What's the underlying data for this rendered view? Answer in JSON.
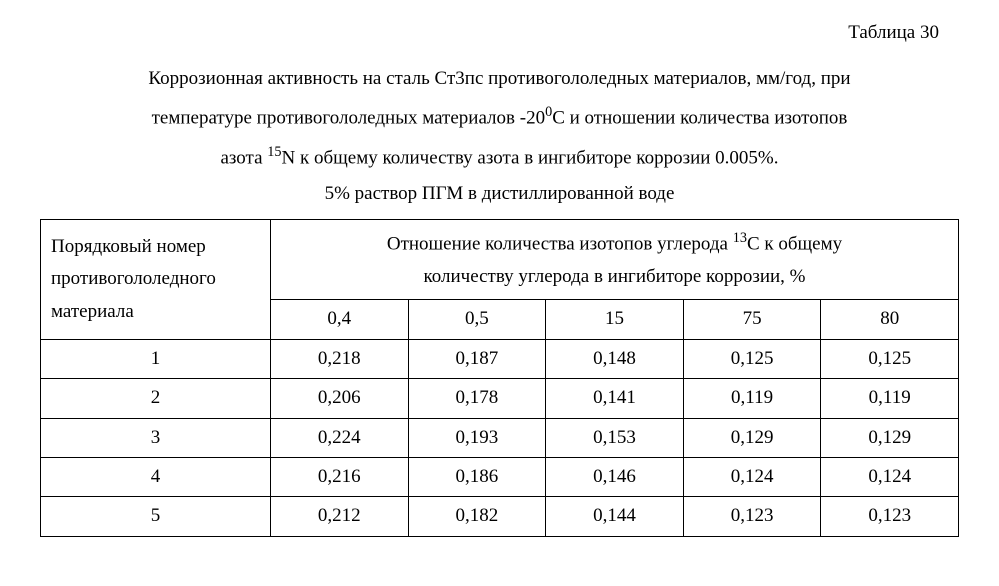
{
  "table_label": "Таблица 30",
  "caption": {
    "line1_a": "Коррозионная активность на сталь Ст3пс противогололедных материалов, мм/год, при",
    "line2_a": "температуре противогололедных материалов -20",
    "line2_sup": "0",
    "line2_b": "С и отношении количества изотопов",
    "line3_a": "азота ",
    "line3_sup": "15",
    "line3_b": "N  к общему количеству азота в ингибиторе коррозии 0.005%.",
    "solution": "5% раствор ПГМ в дистиллированной воде"
  },
  "table": {
    "row_header": "Порядковый номер противогололедного материала",
    "col_group_a": "Отношение количества изотопов углерода ",
    "col_group_sup": "13",
    "col_group_b": "С к общему",
    "col_group_c": "количеству углерода в ингибиторе коррозии, %",
    "columns": [
      "0,4",
      "0,5",
      "15",
      "75",
      "80"
    ],
    "rows": [
      {
        "num": "1",
        "v": [
          "0,218",
          "0,187",
          "0,148",
          "0,125",
          "0,125"
        ]
      },
      {
        "num": "2",
        "v": [
          "0,206",
          "0,178",
          "0,141",
          "0,119",
          "0,119"
        ]
      },
      {
        "num": "3",
        "v": [
          "0,224",
          "0,193",
          "0,153",
          "0,129",
          "0,129"
        ]
      },
      {
        "num": "4",
        "v": [
          "0,216",
          "0,186",
          "0,146",
          "0,124",
          "0,124"
        ]
      },
      {
        "num": "5",
        "v": [
          "0,212",
          "0,182",
          "0,144",
          "0,123",
          "0,123"
        ]
      }
    ]
  }
}
